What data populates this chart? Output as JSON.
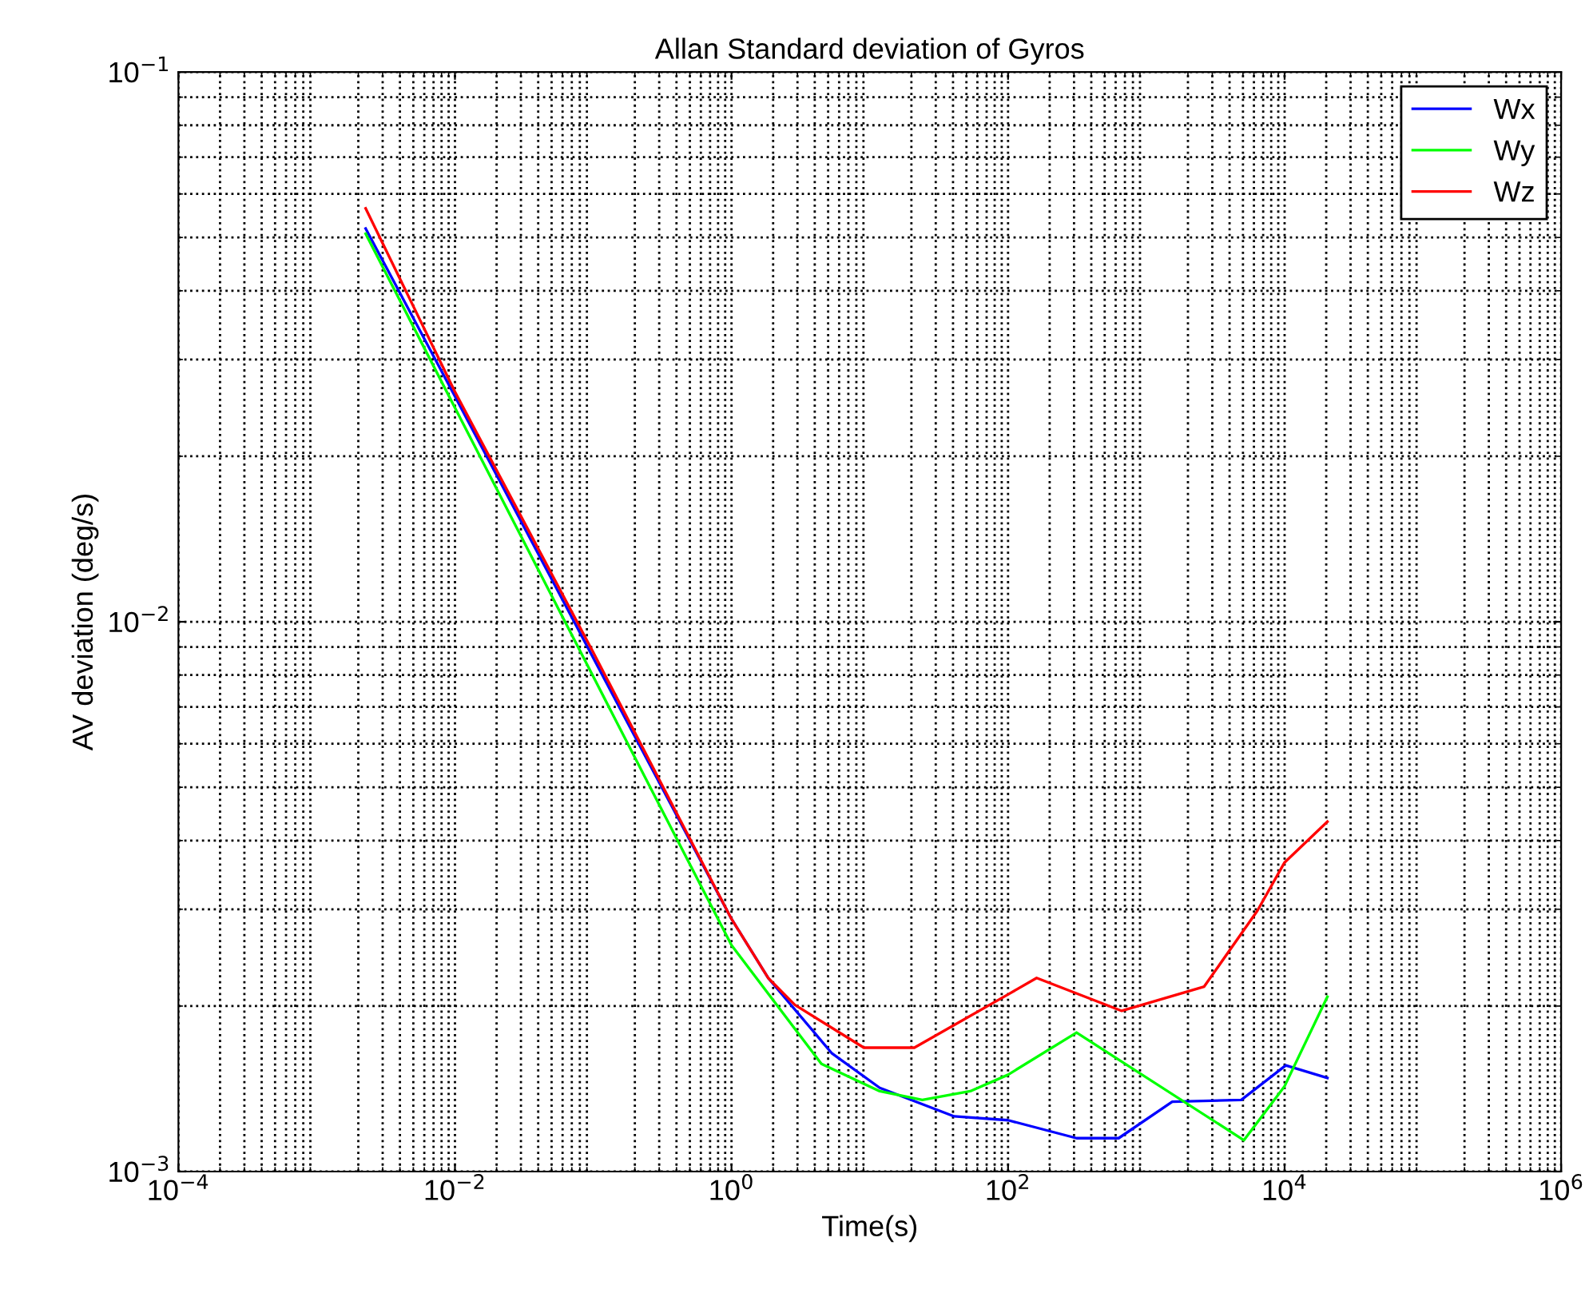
{
  "chart_data": {
    "type": "line",
    "title": "Allan Standard deviation of Gyros",
    "xlabel": "Time(s)",
    "ylabel": "AV deviation (deg/s)",
    "log": "xy",
    "grid": true,
    "legend": "top right",
    "line_style": "solid",
    "xlim": [
      0.0001,
      1000000
    ],
    "ylim": [
      0.001,
      0.1
    ],
    "xticks": [
      {
        "value": 0.0001,
        "label": "10$^{−4}$"
      },
      {
        "value": 0.01,
        "label": "10$^{−2}$"
      },
      {
        "value": 1,
        "label": "10$^{0}$"
      },
      {
        "value": 100,
        "label": "10$^{2}$"
      },
      {
        "value": 10000,
        "label": "10$^{4}$"
      },
      {
        "value": 1000000,
        "label": "10$^{6}$"
      }
    ],
    "yticks": [
      {
        "value": 0.001,
        "label": "10$^{−3}$"
      },
      {
        "value": 0.01,
        "label": "10$^{−2}$"
      },
      {
        "value": 0.1,
        "label": "10$^{−1}$"
      }
    ],
    "series": [
      {
        "name": "Wx",
        "color": "#0000ff",
        "x": [
          0.00226,
          0.01,
          0.1,
          1,
          1.84,
          5.33,
          11.8,
          40.8,
          100,
          313,
          631,
          1540,
          4860,
          10200,
          20400
        ],
        "values": [
          0.0519,
          0.0257,
          0.0086,
          0.00288,
          0.00225,
          0.00164,
          0.00142,
          0.00126,
          0.00124,
          0.00115,
          0.00115,
          0.00134,
          0.00135,
          0.00156,
          0.00148
        ]
      },
      {
        "name": "Wy",
        "color": "#00ff00",
        "x": [
          0.00226,
          0.01,
          0.1,
          1,
          4.47,
          11.8,
          24,
          53.3,
          100,
          313,
          5080,
          10000,
          20400
        ],
        "values": [
          0.0508,
          0.0245,
          0.00795,
          0.00258,
          0.00157,
          0.0014,
          0.00135,
          0.0014,
          0.0015,
          0.00179,
          0.00114,
          0.00143,
          0.00208
        ]
      },
      {
        "name": "Wz",
        "color": "#ff0000",
        "x": [
          0.00226,
          0.01,
          0.1,
          1,
          1.84,
          2.87,
          9.06,
          21,
          100,
          161,
          664,
          2620,
          6350,
          10000,
          20400
        ],
        "values": [
          0.0565,
          0.0262,
          0.0088,
          0.00288,
          0.00225,
          0.00201,
          0.00168,
          0.00168,
          0.0021,
          0.00225,
          0.00196,
          0.00217,
          0.00298,
          0.00365,
          0.00433
        ]
      }
    ]
  }
}
